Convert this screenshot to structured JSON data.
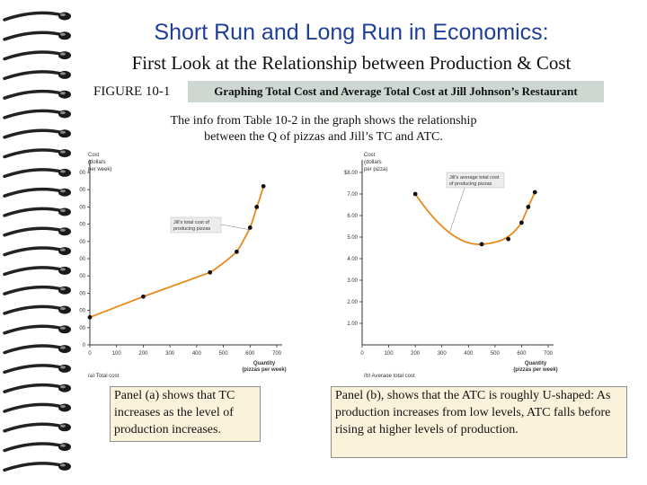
{
  "slide": {
    "title": "Short Run and Long Run in Economics:",
    "subtitle": "First Look at the Relationship between Production & Cost",
    "figure_label": "FIGURE 10-1",
    "figure_caption": "Graphing Total Cost and Average Total Cost at Jill Johnson’s Restaurant",
    "intro_line1": "The info from Table 10-2 in the graph shows the relationship",
    "intro_line2": "between the Q of pizzas and Jill’s TC and ATC.",
    "panel_a_text": "Panel (a) shows that TC increases as the level of production increases.",
    "panel_b_text": "Panel (b), shows that the ATC is roughly U-shaped: As production increases from low levels, ATC falls before rising at higher levels of production."
  },
  "colors": {
    "title": "#1f3f97",
    "curve": "#e88a1a",
    "point": "#111111",
    "panel_bg": "#fbf2dc",
    "fig_box": "#cfd7d2"
  },
  "chart_data": [
    {
      "type": "line",
      "panel": "(a) Total cost",
      "ylabel": "Cost (dollars per week)",
      "xlabel": "Quantity (pizzas per week)",
      "xlim": [
        0,
        700
      ],
      "ylim": [
        0,
        5000
      ],
      "x_ticks": [
        0,
        100,
        200,
        300,
        400,
        500,
        600,
        700
      ],
      "y_ticks": [
        0,
        500,
        1000,
        1500,
        2000,
        2500,
        3000,
        3500,
        4000,
        4500,
        5000
      ],
      "x_tick_labels": [
        "0",
        "100",
        "200",
        "300",
        "400",
        "500",
        "600",
        "700"
      ],
      "y_tick_labels": [
        "0",
        "500",
        "1,000",
        "1,500",
        "2,000",
        "2,500",
        "3,000",
        "3,500",
        "4,000",
        "4,500",
        "$5,000"
      ],
      "x": [
        0,
        200,
        450,
        550,
        600,
        625,
        650
      ],
      "values": [
        800,
        1400,
        2100,
        2700,
        3400,
        4000,
        4600
      ],
      "annotation": [
        "Jill’s total cost of",
        "producing pizzas"
      ]
    },
    {
      "type": "line",
      "panel": "(b) Average total cost",
      "ylabel": "Cost (dollars per pizza)",
      "xlabel": "Quantity (pizzas per week)",
      "xlim": [
        0,
        700
      ],
      "ylim": [
        0,
        8
      ],
      "x_ticks": [
        0,
        100,
        200,
        300,
        400,
        500,
        600,
        700
      ],
      "y_ticks": [
        1,
        2,
        3,
        4,
        5,
        6,
        7,
        8
      ],
      "x_tick_labels": [
        "0",
        "100",
        "200",
        "300",
        "400",
        "500",
        "600",
        "700"
      ],
      "y_tick_labels": [
        "1.00",
        "2.00",
        "3.00",
        "4.00",
        "5.00",
        "6.00",
        "7.00",
        "$8.00"
      ],
      "x": [
        200,
        450,
        550,
        600,
        625,
        650
      ],
      "values": [
        7.0,
        4.67,
        4.91,
        5.67,
        6.4,
        7.08
      ],
      "annotation": [
        "Jill’s average total cost",
        "of producing pizzas"
      ]
    }
  ]
}
